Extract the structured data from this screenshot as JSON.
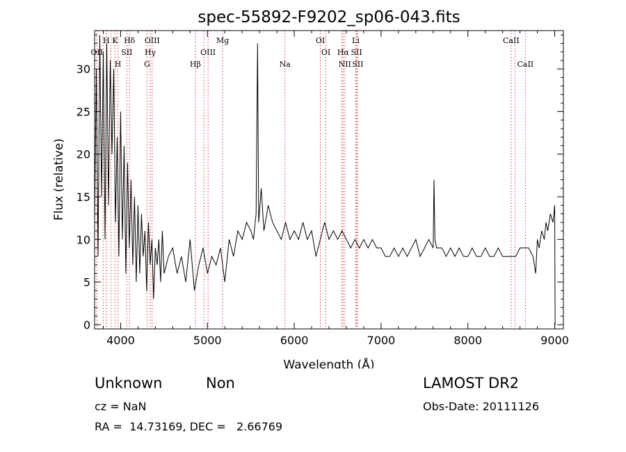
{
  "chart_data": {
    "type": "line",
    "title": "spec-55892-F9202_sp06-043.fits",
    "xlabel": "Wavelength (Å)",
    "ylabel": "Flux (relative)",
    "xlim": [
      3700,
      9100
    ],
    "ylim": [
      -0.5,
      34.5
    ],
    "xticks": [
      4000,
      5000,
      6000,
      7000,
      8000,
      9000
    ],
    "yticks": [
      0,
      5,
      10,
      15,
      20,
      25,
      30
    ],
    "grid": false,
    "legend": "none",
    "line_color": "#000000",
    "marker_color": "#cc0000",
    "series": [
      {
        "x": [
          3700,
          3720,
          3740,
          3760,
          3780,
          3800,
          3820,
          3840,
          3860,
          3880,
          3900,
          3920,
          3940,
          3960,
          3980,
          4000,
          4020,
          4040,
          4060,
          4080,
          4100,
          4120,
          4140,
          4160,
          4180,
          4200,
          4220,
          4240,
          4260,
          4280,
          4300,
          4320,
          4340,
          4360,
          4380,
          4400,
          4420,
          4440,
          4460,
          4480,
          4500,
          4550,
          4600,
          4650,
          4700,
          4750,
          4800,
          4850,
          4900,
          4950,
          5000,
          5050,
          5100,
          5150,
          5200,
          5250,
          5300,
          5350,
          5400,
          5450,
          5500,
          5530,
          5560,
          5577,
          5590,
          5620,
          5650,
          5700,
          5750,
          5800,
          5850,
          5900,
          5950,
          6000,
          6050,
          6100,
          6150,
          6200,
          6250,
          6300,
          6350,
          6400,
          6450,
          6500,
          6550,
          6600,
          6650,
          6700,
          6750,
          6800,
          6850,
          6900,
          6950,
          7000,
          7050,
          7100,
          7150,
          7200,
          7250,
          7300,
          7350,
          7400,
          7450,
          7500,
          7550,
          7600,
          7610,
          7620,
          7640,
          7700,
          7750,
          7800,
          7850,
          7900,
          7950,
          8000,
          8050,
          8100,
          8150,
          8200,
          8250,
          8300,
          8350,
          8400,
          8450,
          8500,
          8550,
          8600,
          8650,
          8700,
          8750,
          8780,
          8800,
          8820,
          8850,
          8880,
          8900,
          8920,
          8950,
          8980,
          9000,
          9005
        ],
        "y": [
          12,
          30,
          8,
          34,
          15,
          32,
          10,
          33,
          14,
          31,
          20,
          30,
          12,
          22,
          8,
          25,
          10,
          21,
          6,
          19,
          9,
          17,
          7,
          15,
          5,
          14,
          6,
          13,
          8,
          11,
          4,
          12,
          7,
          10,
          3,
          9,
          7,
          10,
          5,
          11,
          6,
          8,
          9,
          6,
          8,
          5,
          10,
          4,
          7,
          9,
          6,
          8,
          7,
          9,
          5,
          10,
          8,
          11,
          10,
          12,
          11,
          10,
          13,
          33,
          12,
          16,
          11,
          14,
          12,
          11,
          10,
          12,
          10,
          11,
          10,
          12,
          10,
          11,
          8,
          10,
          12,
          10,
          11,
          10,
          11,
          10,
          9,
          10,
          9,
          10,
          9,
          10,
          9,
          9,
          8,
          8,
          9,
          8,
          9,
          8,
          9,
          10,
          8,
          9,
          10,
          9,
          17,
          10,
          9,
          9,
          8,
          9,
          8,
          9,
          8,
          8,
          9,
          8,
          8,
          9,
          8,
          8,
          9,
          8,
          8,
          8,
          8,
          9,
          9,
          9,
          8,
          6,
          10,
          9,
          11,
          10,
          12,
          11,
          13,
          12,
          14,
          0
        ]
      }
    ],
    "lines": [
      {
        "w": 3727,
        "label": "OII",
        "row": 1
      },
      {
        "w": 3798,
        "label": "",
        "row": 0
      },
      {
        "w": 3835,
        "label": "H",
        "row": 0
      },
      {
        "w": 3889,
        "label": "",
        "row": 0
      },
      {
        "w": 3934,
        "label": "K",
        "row": 0
      },
      {
        "w": 3969,
        "label": "H",
        "row": 2
      },
      {
        "w": 4071,
        "label": "SII",
        "row": 1
      },
      {
        "w": 4102,
        "label": "Hδ",
        "row": 0
      },
      {
        "w": 4304,
        "label": "G",
        "row": 2
      },
      {
        "w": 4341,
        "label": "Hγ",
        "row": 1
      },
      {
        "w": 4363,
        "label": "OIII",
        "row": 0
      },
      {
        "w": 4861,
        "label": "Hβ",
        "row": 2
      },
      {
        "w": 4959,
        "label": "",
        "row": 1
      },
      {
        "w": 5007,
        "label": "OIII",
        "row": 1
      },
      {
        "w": 5175,
        "label": "Mg",
        "row": 0
      },
      {
        "w": 5893,
        "label": "Na",
        "row": 2
      },
      {
        "w": 6300,
        "label": "OI",
        "row": 0
      },
      {
        "w": 6364,
        "label": "OI",
        "row": 1
      },
      {
        "w": 6548,
        "label": "",
        "row": 2
      },
      {
        "w": 6563,
        "label": "Hα",
        "row": 1
      },
      {
        "w": 6583,
        "label": "NII",
        "row": 2
      },
      {
        "w": 6708,
        "label": "Li",
        "row": 0
      },
      {
        "w": 6717,
        "label": "SII",
        "row": 1
      },
      {
        "w": 6731,
        "label": "SII",
        "row": 2
      },
      {
        "w": 8498,
        "label": "CaII",
        "row": 0
      },
      {
        "w": 8542,
        "label": "",
        "row": 0
      },
      {
        "w": 8662,
        "label": "CaII",
        "row": 2
      }
    ]
  },
  "info": {
    "class": "Unknown",
    "subclass": "Non",
    "survey": "LAMOST DR2",
    "cz": "cz = NaN",
    "obs_date": "Obs-Date: 20111126",
    "coords": "RA =  14.73169, DEC =   2.66769"
  }
}
